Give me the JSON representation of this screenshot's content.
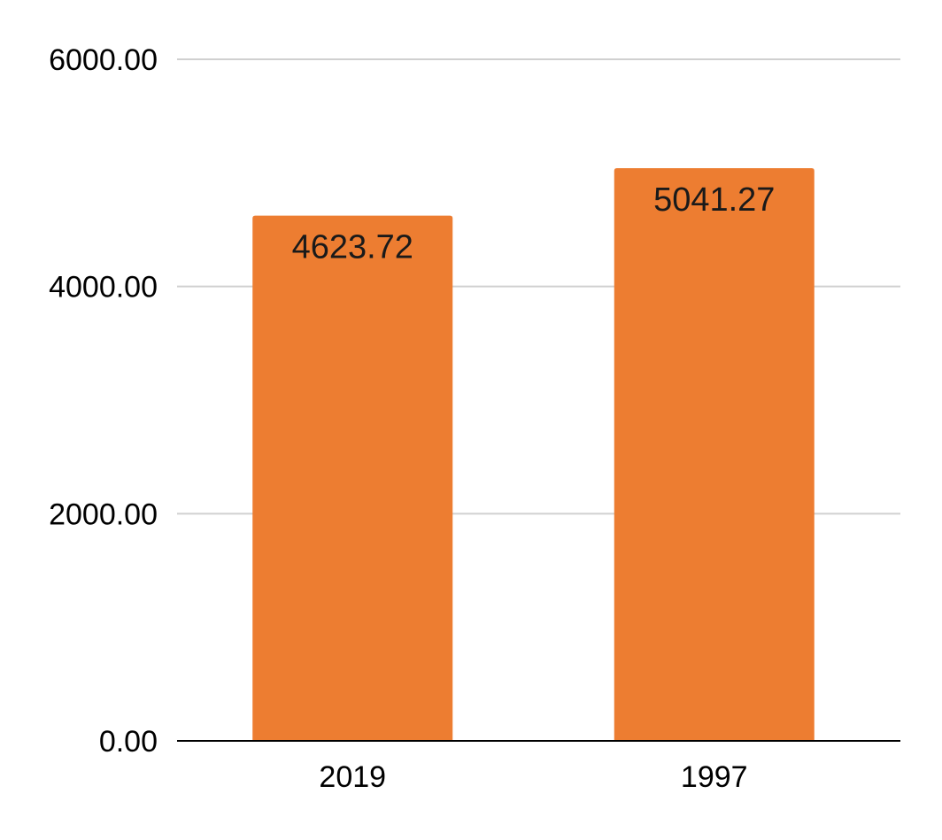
{
  "chart_data": {
    "type": "bar",
    "categories": [
      "2019",
      "1997"
    ],
    "values": [
      4623.72,
      5041.27
    ],
    "data_labels": [
      "4623.72",
      "5041.27"
    ],
    "y_ticks": [
      "0.00",
      "2000.00",
      "4000.00",
      "6000.00"
    ],
    "y_tick_values": [
      0,
      2000,
      4000,
      6000
    ],
    "ylim": [
      0,
      6000
    ],
    "title": "",
    "xlabel": "",
    "ylabel": "",
    "grid": true,
    "legend": "none",
    "bar_color": "#ED7D31"
  }
}
